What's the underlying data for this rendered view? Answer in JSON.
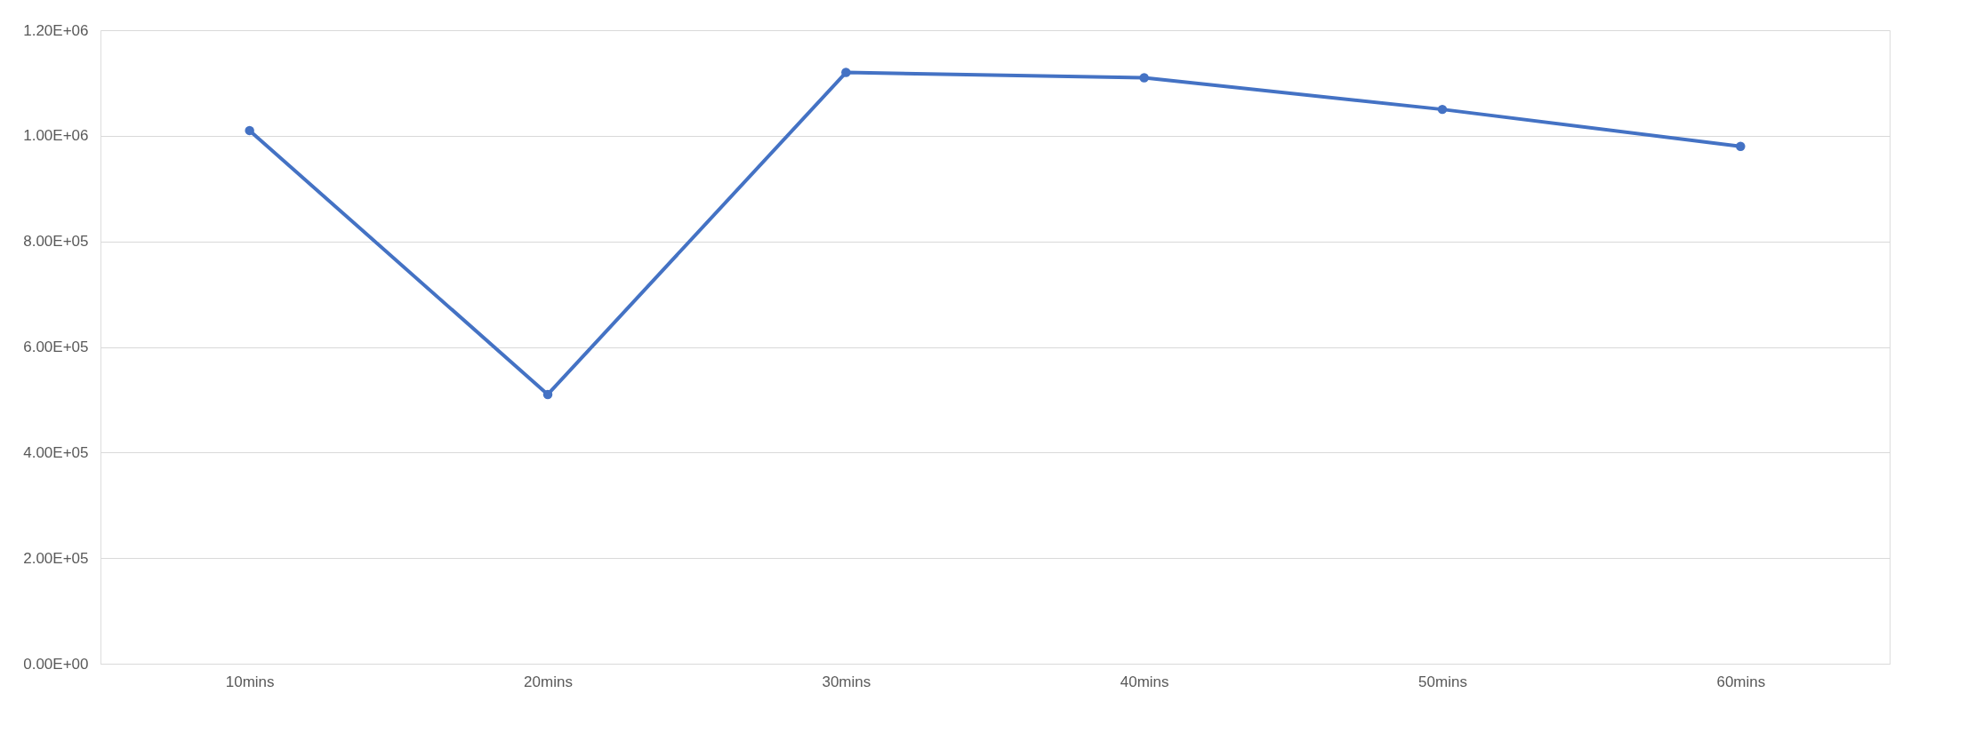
{
  "chart_data": {
    "type": "line",
    "categories": [
      "10mins",
      "20mins",
      "30mins",
      "40mins",
      "50mins",
      "60mins"
    ],
    "series": [
      {
        "color": "#4472c4",
        "values": [
          1010000,
          510000,
          1120000,
          1110000,
          1050000,
          980000
        ]
      }
    ],
    "ylim": [
      0,
      1200000
    ],
    "yticks": [
      {
        "value": 0,
        "label": "0.00E+00"
      },
      {
        "value": 200000,
        "label": "2.00E+05"
      },
      {
        "value": 400000,
        "label": "4.00E+05"
      },
      {
        "value": 600000,
        "label": "6.00E+05"
      },
      {
        "value": 800000,
        "label": "8.00E+05"
      },
      {
        "value": 1000000,
        "label": "1.00E+06"
      },
      {
        "value": 1200000,
        "label": "1.20E+06"
      }
    ],
    "grid": "y",
    "marker": "circle",
    "line_style": "solid",
    "legend": false
  }
}
